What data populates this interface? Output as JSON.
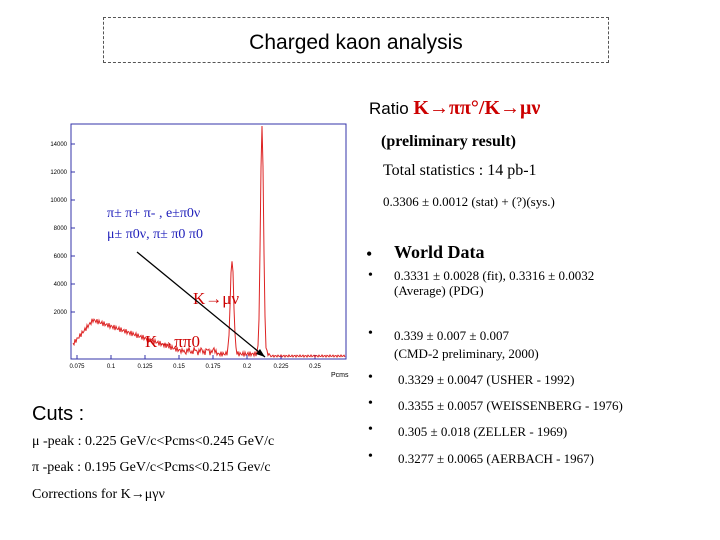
{
  "title": "Charged kaon analysis",
  "ratio": {
    "prefix": "Ratio",
    "formula": "K→ππ°/K→μν"
  },
  "preliminary": "(preliminary result)",
  "statistics": "Total statistics : 14 pb-1",
  "measurement": "0.3306 ± 0.0012 (stat) + (?)(sys.)",
  "world_data": {
    "heading": "World Data",
    "entries": [
      {
        "line1": "0.3331 ± 0.0028 (fit), 0.3316 ± 0.0032",
        "line2": "(Average) (PDG)"
      },
      {
        "line1": "0.339 ± 0.007  ± 0.007",
        "line2": "(CMD-2 preliminary, 2000)"
      },
      {
        "line1": "0.3329 ± 0.0047 (USHER - 1992)"
      },
      {
        "line1": "0.3355 ± 0.0057 (WEISSENBERG - 1976)"
      },
      {
        "line1": "0.305  ± 0.018  (ZELLER - 1969)"
      },
      {
        "line1": "0.3277 ± 0.0065 (AERBACH - 1967)"
      }
    ]
  },
  "cuts": {
    "title": "Cuts :",
    "lines": [
      "μ -peak :  0.225 GeV/c<Pcms<0.245 GeV/c",
      "π -peak :  0.195 GeV/c<Pcms<0.215 Gev/c",
      "Corrections for K→μγν"
    ]
  },
  "plot": {
    "y_ticks": [
      "14000",
      "12000",
      "10000",
      "8000",
      "6000",
      "4000",
      "2000"
    ],
    "x_ticks": [
      "0.075",
      "0.1",
      "0.125",
      "0.15",
      "0.175",
      "0.2",
      "0.225",
      "0.25"
    ],
    "x_label": "Pcms",
    "background_label_line1": "π± π+ π- , e±π0ν",
    "background_label_line2": "μ± π0ν, π± π0 π0",
    "label_kmunu": "K→μν",
    "label_kpipi": "K→ππ0",
    "histogram_color": "#dd2222",
    "axis_frame_color": "#3333aa",
    "arrow_color": "#000000"
  }
}
